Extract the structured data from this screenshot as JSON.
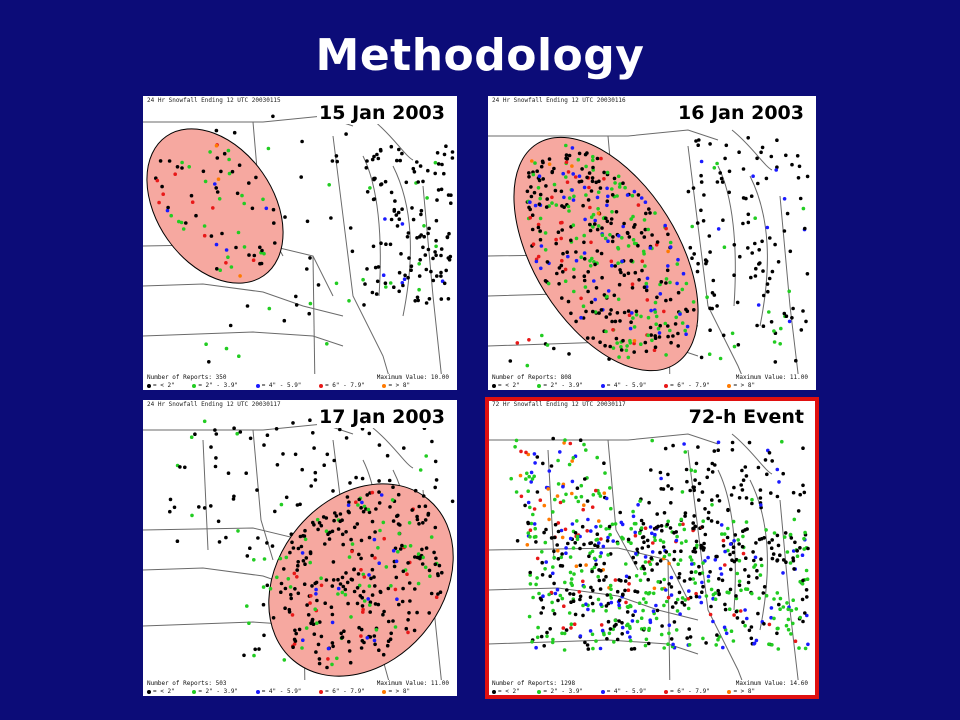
{
  "title": "Methodology",
  "colors": {
    "background": "#0c0c78",
    "highlight_frame": "#e01010",
    "ellipse_fill": "#f6a8a0",
    "dot_lt2": "#000000",
    "dot_2_39": "#22cc22",
    "dot_4_59": "#1a1aff",
    "dot_6_79": "#e81818",
    "dot_ge8": "#ff7a00"
  },
  "panels": [
    {
      "label": "15 Jan 2003",
      "header": "24 Hr Snowfall Ending 12 UTC 20030115",
      "reports": "Number of Reports: 350",
      "max": "Maximum Value: 10.00",
      "legend": [
        "= < 2\"",
        "= 2\" - 3.9\"",
        "= 4\" - 5.9\"",
        "= 6\" - 7.9\"",
        "= > 8\""
      ]
    },
    {
      "label": "16 Jan 2003",
      "header": "24 Hr Snowfall Ending 12 UTC 20030116",
      "reports": "Number of Reports: 808",
      "max": "Maximum Value: 11.00",
      "legend": [
        "= < 2\"",
        "= 2\" - 3.9\"",
        "= 4\" - 5.9\"",
        "= 6\" - 7.9\"",
        "= > 8\""
      ]
    },
    {
      "label": "17 Jan 2003",
      "header": "24 Hr Snowfall Ending 12 UTC 20030117",
      "reports": "Number of Reports: 503",
      "max": "Maximum Value: 11.00",
      "legend": [
        "= < 2\"",
        "= 2\" - 3.9\"",
        "= 4\" - 5.9\"",
        "= 6\" - 7.9\"",
        "= > 8\""
      ]
    },
    {
      "label": "72-h Event",
      "header": "72 Hr Snowfall Ending 12 UTC 20030117",
      "reports": "Number of Reports: 1298",
      "max": "Maximum Value: 14.60",
      "legend": [
        "= < 2\"",
        "= 2\" - 3.9\"",
        "= 4\" - 5.9\"",
        "= 6\" - 7.9\"",
        "= > 8\""
      ]
    }
  ]
}
